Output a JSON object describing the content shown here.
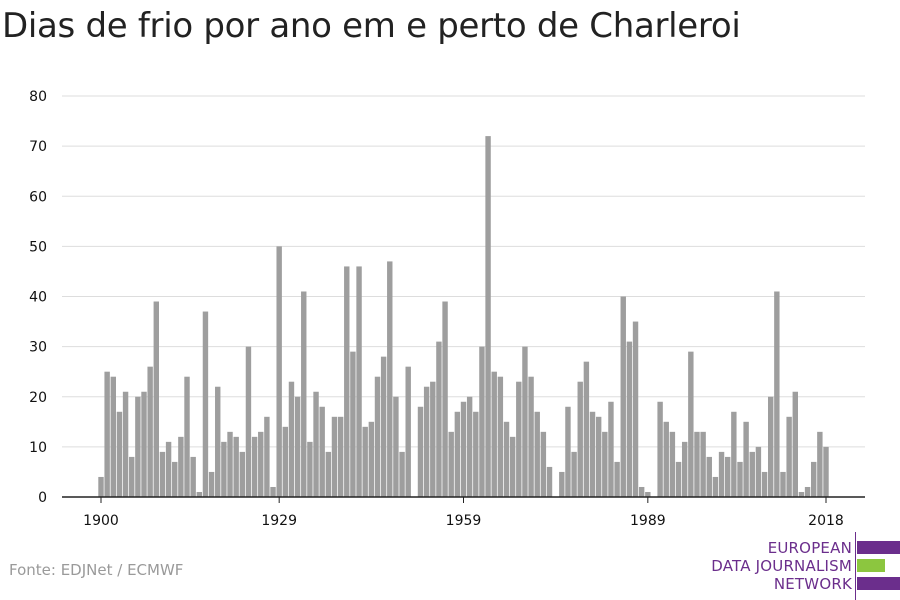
{
  "title": "Dias de frio por ano em e perto de Charleroi",
  "source": "Fonte: EDJNet / ECMWF",
  "logo": {
    "line1": "EUROPEAN",
    "line2": "DATA JOURNALISM",
    "line3": "NETWORK",
    "colors": {
      "purple": "#6b2e8c",
      "green": "#8cc63f"
    }
  },
  "colors": {
    "bar": "#9e9e9e",
    "grid": "#dddddd",
    "axis": "#222222"
  },
  "chart_data": {
    "type": "bar",
    "title": "Dias de frio por ano em e perto de Charleroi",
    "xlabel": "",
    "ylabel": "",
    "x_start": 1900,
    "x_end": 2018,
    "x_ticks": [
      1900,
      1929,
      1959,
      1989,
      2018
    ],
    "y_ticks": [
      0,
      10,
      20,
      30,
      40,
      50,
      60,
      70,
      80
    ],
    "ylim": [
      0,
      80
    ],
    "grid": true,
    "values": [
      4,
      25,
      24,
      17,
      21,
      8,
      20,
      21,
      26,
      39,
      9,
      11,
      7,
      12,
      24,
      8,
      1,
      37,
      5,
      22,
      11,
      13,
      12,
      9,
      30,
      12,
      13,
      16,
      2,
      50,
      14,
      23,
      20,
      41,
      11,
      21,
      18,
      9,
      16,
      16,
      46,
      29,
      46,
      14,
      15,
      24,
      28,
      47,
      20,
      9,
      26,
      0,
      18,
      22,
      23,
      31,
      39,
      13,
      17,
      19,
      20,
      17,
      30,
      72,
      25,
      24,
      15,
      12,
      23,
      30,
      24,
      17,
      13,
      6,
      0,
      5,
      18,
      9,
      23,
      27,
      17,
      16,
      13,
      19,
      7,
      40,
      31,
      35,
      2,
      1,
      0,
      19,
      15,
      13,
      7,
      11,
      29,
      13,
      13,
      8,
      4,
      9,
      8,
      17,
      7,
      15,
      9,
      10,
      5,
      20,
      41,
      5,
      16,
      21,
      1,
      2,
      7,
      13,
      10
    ]
  }
}
